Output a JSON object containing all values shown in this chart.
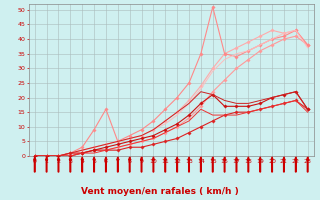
{
  "background_color": "#cff0f0",
  "grid_color": "#aabbbb",
  "xlabel": "Vent moyen/en rafales ( km/h )",
  "ylabel_ticks": [
    0,
    5,
    10,
    15,
    20,
    25,
    30,
    35,
    40,
    45,
    50
  ],
  "xlim": [
    -0.5,
    23.5
  ],
  "ylim": [
    0,
    52
  ],
  "x_ticks": [
    0,
    1,
    2,
    3,
    4,
    5,
    6,
    7,
    8,
    9,
    10,
    11,
    12,
    13,
    14,
    15,
    16,
    17,
    18,
    19,
    20,
    21,
    22,
    23
  ],
  "lines_light": [
    {
      "x": [
        0,
        1,
        2,
        3,
        4,
        5,
        6,
        7,
        8,
        9,
        10,
        11,
        12,
        13,
        14,
        15,
        16,
        17,
        18,
        19,
        20,
        21,
        22,
        23
      ],
      "y": [
        0,
        0,
        0,
        1,
        1,
        2,
        2,
        3,
        4,
        5,
        6,
        8,
        10,
        13,
        17,
        22,
        26,
        30,
        33,
        36,
        38,
        40,
        41,
        38
      ],
      "color": "#ff9999",
      "lw": 0.8,
      "marker": "D",
      "ms": 1.8
    },
    {
      "x": [
        0,
        1,
        2,
        3,
        4,
        5,
        6,
        7,
        8,
        9,
        10,
        11,
        12,
        13,
        14,
        15,
        16,
        17,
        18,
        19,
        20,
        21,
        22,
        23
      ],
      "y": [
        0,
        0,
        0,
        1,
        2,
        3,
        4,
        5,
        6,
        7,
        9,
        12,
        15,
        19,
        24,
        30,
        35,
        37,
        39,
        41,
        43,
        42,
        43,
        38
      ],
      "color": "#ffaaaa",
      "lw": 0.8,
      "marker": "D",
      "ms": 1.8
    },
    {
      "x": [
        0,
        2,
        3,
        4,
        5,
        6,
        7,
        8,
        9,
        10,
        11,
        12,
        13,
        14,
        15,
        16,
        17,
        18,
        19,
        20,
        21,
        22,
        23
      ],
      "y": [
        0,
        0,
        1,
        3,
        9,
        16,
        5,
        7,
        9,
        12,
        16,
        20,
        25,
        35,
        51,
        35,
        34,
        36,
        38,
        40,
        41,
        43,
        38
      ],
      "color": "#ff8888",
      "lw": 0.8,
      "marker": "D",
      "ms": 1.8
    },
    {
      "x": [
        0,
        1,
        2,
        3,
        4,
        5,
        6,
        7,
        8,
        9,
        10,
        11,
        12,
        13,
        14,
        15,
        16,
        17,
        18,
        19,
        20,
        21,
        22,
        23
      ],
      "y": [
        0,
        0,
        0,
        1,
        2,
        3,
        4,
        5,
        6,
        7,
        9,
        11,
        14,
        18,
        23,
        29,
        33,
        35,
        36,
        38,
        40,
        42,
        43,
        37
      ],
      "color": "#ffbbbb",
      "lw": 0.7,
      "marker": null,
      "ms": 0
    }
  ],
  "lines_dark": [
    {
      "x": [
        0,
        1,
        2,
        3,
        4,
        5,
        6,
        7,
        8,
        9,
        10,
        11,
        12,
        13,
        14,
        15,
        16,
        17,
        18,
        19,
        20,
        21,
        22,
        23
      ],
      "y": [
        0,
        0,
        0,
        1,
        1,
        2,
        2,
        2,
        3,
        3,
        4,
        5,
        6,
        8,
        10,
        12,
        14,
        15,
        15,
        16,
        17,
        18,
        19,
        16
      ],
      "color": "#dd2222",
      "lw": 0.8,
      "marker": "D",
      "ms": 1.8
    },
    {
      "x": [
        0,
        1,
        2,
        3,
        4,
        5,
        6,
        7,
        8,
        9,
        10,
        11,
        12,
        13,
        14,
        15,
        16,
        17,
        18,
        19,
        20,
        21,
        22,
        23
      ],
      "y": [
        0,
        0,
        0,
        0,
        1,
        2,
        3,
        4,
        5,
        6,
        7,
        9,
        11,
        14,
        18,
        21,
        17,
        17,
        17,
        18,
        20,
        21,
        22,
        16
      ],
      "color": "#cc1111",
      "lw": 0.8,
      "marker": "D",
      "ms": 1.8
    },
    {
      "x": [
        0,
        1,
        2,
        3,
        4,
        5,
        6,
        7,
        8,
        9,
        10,
        11,
        12,
        13,
        14,
        15,
        16,
        17,
        18,
        19,
        20,
        21,
        22,
        23
      ],
      "y": [
        0,
        0,
        0,
        1,
        2,
        3,
        4,
        5,
        6,
        7,
        9,
        12,
        15,
        18,
        22,
        21,
        19,
        18,
        18,
        19,
        20,
        21,
        22,
        16
      ],
      "color": "#cc2222",
      "lw": 0.7,
      "marker": null,
      "ms": 0
    },
    {
      "x": [
        0,
        1,
        2,
        3,
        4,
        5,
        6,
        7,
        8,
        9,
        10,
        11,
        12,
        13,
        14,
        15,
        16,
        17,
        18,
        19,
        20,
        21,
        22,
        23
      ],
      "y": [
        0,
        0,
        0,
        0,
        1,
        1,
        2,
        3,
        4,
        5,
        6,
        8,
        10,
        12,
        16,
        14,
        14,
        14,
        15,
        16,
        17,
        18,
        19,
        15
      ],
      "color": "#ee3333",
      "lw": 0.7,
      "marker": null,
      "ms": 0
    }
  ],
  "arrow_color": "#cc0000",
  "xlabel_color": "#cc0000",
  "tick_color": "#cc0000",
  "xlabel_fontsize": 6.5,
  "tick_fontsize": 4.5
}
